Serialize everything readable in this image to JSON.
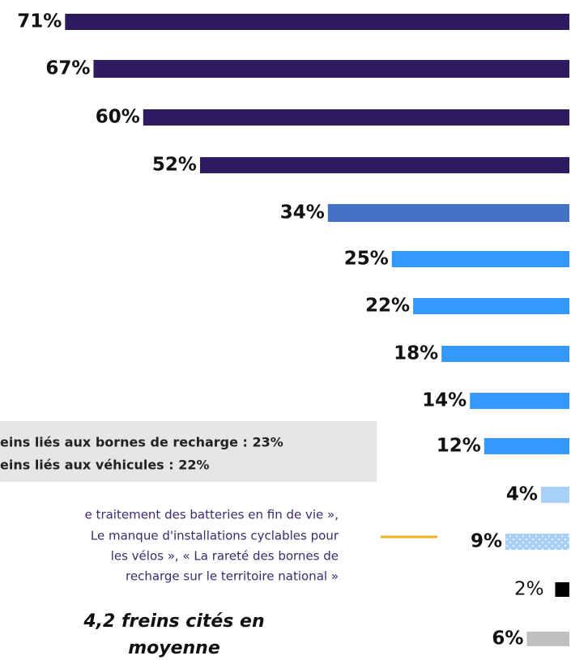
{
  "chart_data": {
    "type": "bar",
    "orientation": "horizontal",
    "values": [
      71,
      67,
      60,
      52,
      34,
      25,
      22,
      18,
      14,
      12,
      4,
      9,
      2,
      6
    ],
    "value_labels": [
      "71%",
      "67%",
      "60%",
      "52%",
      "34%",
      "25%",
      "22%",
      "18%",
      "14%",
      "12%",
      "4%",
      "9%",
      "2%",
      "6%"
    ],
    "colors": [
      "#2e1a5e",
      "#2e1a5e",
      "#2e1a5e",
      "#2e1a5e",
      "#4472c4",
      "#3399ff",
      "#3399ff",
      "#3399ff",
      "#3399ff",
      "#3399ff",
      "#a8d0f8",
      "#a8d0f8",
      "#000000",
      "#c0c0c0"
    ],
    "dotted": [
      false,
      false,
      false,
      false,
      false,
      false,
      false,
      false,
      false,
      false,
      false,
      true,
      false,
      false
    ],
    "label_bold": [
      true,
      true,
      true,
      true,
      true,
      true,
      true,
      true,
      true,
      true,
      true,
      true,
      false,
      true
    ],
    "box_lines": [
      "eins liés aux bornes de recharge : 23%",
      "eins liés aux véhicules : 22%"
    ],
    "note_lines": [
      "e traitement des batteries en fin de vie »,",
      "Le manque d'installations cyclables pour",
      "les vélos », « La rareté des bornes de",
      "recharge sur le territoire national »"
    ],
    "average_lines": [
      "4,2 freins cités en",
      "moyenne"
    ]
  }
}
